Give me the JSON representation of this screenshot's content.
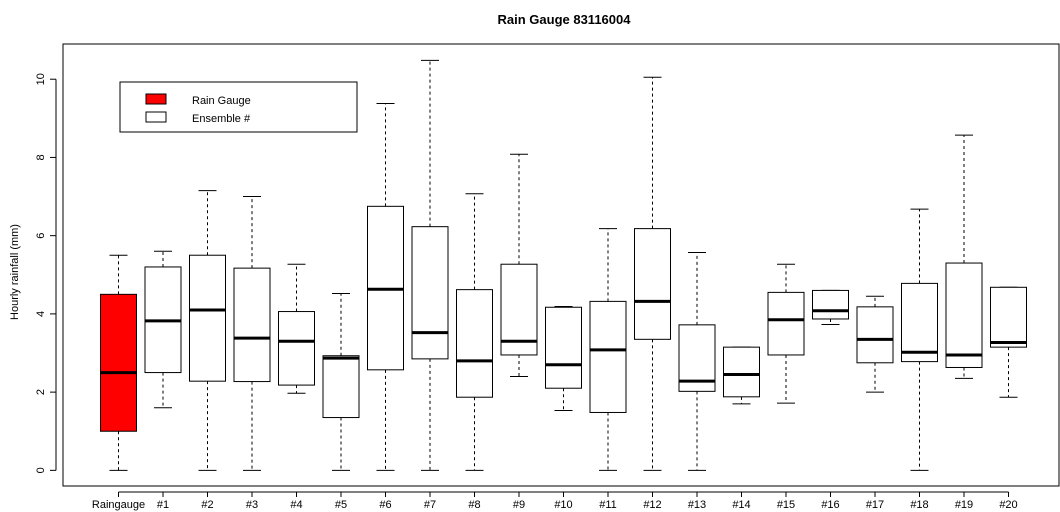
{
  "chart_data": {
    "type": "boxplot",
    "title": "Rain Gauge 83116004",
    "xlabel": "",
    "ylabel": "Hourly rainfall (mm)",
    "ylim": [
      -0.4,
      10.9
    ],
    "yticks": [
      0,
      2,
      4,
      6,
      8,
      10
    ],
    "categories": [
      "Raingauge",
      "#1",
      "#2",
      "#3",
      "#4",
      "#5",
      "#6",
      "#7",
      "#8",
      "#9",
      "#10",
      "#11",
      "#12",
      "#13",
      "#14",
      "#15",
      "#16",
      "#17",
      "#18",
      "#19",
      "#20"
    ],
    "boxes": [
      {
        "min": 0.0,
        "q1": 1.0,
        "median": 2.5,
        "q3": 4.5,
        "max": 5.5
      },
      {
        "min": 1.6,
        "q1": 2.5,
        "median": 3.82,
        "q3": 5.2,
        "max": 5.6
      },
      {
        "min": 0.0,
        "q1": 2.28,
        "median": 4.1,
        "q3": 5.5,
        "max": 7.15
      },
      {
        "min": 0.0,
        "q1": 2.27,
        "median": 3.38,
        "q3": 5.17,
        "max": 7.0
      },
      {
        "min": 1.97,
        "q1": 2.18,
        "median": 3.3,
        "q3": 4.06,
        "max": 5.27
      },
      {
        "min": 0.0,
        "q1": 1.35,
        "median": 2.87,
        "q3": 2.93,
        "max": 4.52
      },
      {
        "min": 0.0,
        "q1": 2.57,
        "median": 4.63,
        "q3": 6.75,
        "max": 9.38
      },
      {
        "min": 0.0,
        "q1": 2.85,
        "median": 3.52,
        "q3": 6.23,
        "max": 10.48
      },
      {
        "min": 0.0,
        "q1": 1.87,
        "median": 2.8,
        "q3": 4.62,
        "max": 7.07
      },
      {
        "min": 2.4,
        "q1": 2.95,
        "median": 3.3,
        "q3": 5.27,
        "max": 8.08
      },
      {
        "min": 1.53,
        "q1": 2.1,
        "median": 2.7,
        "q3": 4.17,
        "max": 4.19
      },
      {
        "min": 0.0,
        "q1": 1.48,
        "median": 3.08,
        "q3": 4.32,
        "max": 6.18
      },
      {
        "min": 0.0,
        "q1": 3.35,
        "median": 4.32,
        "q3": 6.18,
        "max": 10.05
      },
      {
        "min": 0.0,
        "q1": 2.02,
        "median": 2.28,
        "q3": 3.72,
        "max": 5.57
      },
      {
        "min": 1.7,
        "q1": 1.88,
        "median": 2.45,
        "q3": 3.15,
        "max": 3.15
      },
      {
        "min": 1.72,
        "q1": 2.95,
        "median": 3.85,
        "q3": 4.55,
        "max": 5.27
      },
      {
        "min": 3.73,
        "q1": 3.87,
        "median": 4.08,
        "q3": 4.6,
        "max": 4.6
      },
      {
        "min": 2.0,
        "q1": 2.75,
        "median": 3.35,
        "q3": 4.18,
        "max": 4.45
      },
      {
        "min": 0.0,
        "q1": 2.78,
        "median": 3.02,
        "q3": 4.78,
        "max": 6.68
      },
      {
        "min": 2.35,
        "q1": 2.63,
        "median": 2.95,
        "q3": 5.3,
        "max": 8.57
      },
      {
        "min": 1.87,
        "q1": 3.15,
        "median": 3.27,
        "q3": 4.68,
        "max": 4.68
      }
    ],
    "legend": {
      "placement": "top-left",
      "entries": [
        {
          "label": "Rain Gauge",
          "color": "#ff0000"
        },
        {
          "label": "Ensemble #",
          "color": "#ffffff"
        }
      ]
    },
    "colors": {
      "raingauge": "#ff0000",
      "ensemble": "#ffffff"
    }
  }
}
